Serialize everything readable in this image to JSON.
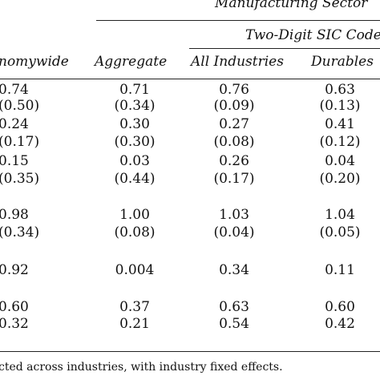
{
  "table": {
    "super_header": "Manufacturing Sector",
    "sub_header": "Two-Digit SIC Code",
    "columns": [
      "nomywide",
      "Aggregate",
      "All Industries",
      "Durables"
    ],
    "rows": [
      [
        "0.74",
        "0.71",
        "0.76",
        "0.63"
      ],
      [
        "(0.50)",
        "(0.34)",
        "(0.09)",
        "(0.13)"
      ],
      [
        "0.24",
        "0.30",
        "0.27",
        "0.41"
      ],
      [
        "(0.17)",
        "(0.30)",
        "(0.08)",
        "(0.12)"
      ],
      [
        "0.15",
        "0.03",
        "0.26",
        "0.04"
      ],
      [
        "(0.35)",
        "(0.44)",
        "(0.17)",
        "(0.20)"
      ],
      [
        "0.98",
        "1.00",
        "1.03",
        "1.04"
      ],
      [
        "(0.34)",
        "(0.08)",
        "(0.04)",
        "(0.05)"
      ],
      [
        "0.92",
        "0.004",
        "0.34",
        "0.11"
      ],
      [
        "0.60",
        "0.37",
        "0.63",
        "0.60"
      ],
      [
        "0.32",
        "0.21",
        "0.54",
        "0.42"
      ]
    ],
    "footnote": "cted across industries, with industry fixed effects."
  }
}
